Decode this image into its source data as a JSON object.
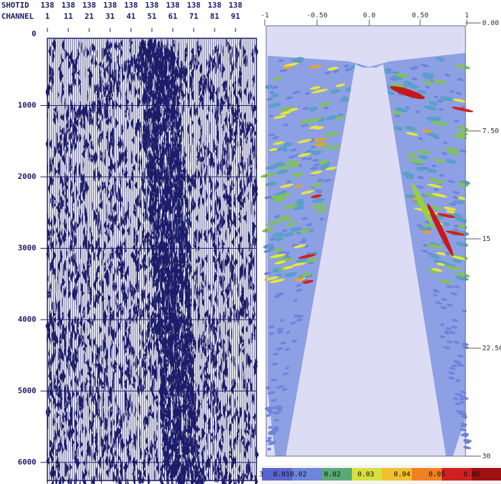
{
  "left_panel": {
    "header_rows": [
      {
        "label": "SHOTID",
        "values": [
          138,
          138,
          138,
          138,
          138,
          138,
          138,
          138,
          138,
          138
        ]
      },
      {
        "label": "CHANNEL",
        "values": [
          1,
          11,
          21,
          31,
          41,
          51,
          61,
          71,
          81,
          91
        ]
      }
    ],
    "y_ticks": [
      0,
      1000,
      2000,
      3000,
      4000,
      5000,
      6000
    ]
  },
  "right_panel": {
    "x_ticks": [
      "-1",
      "-0.50",
      "0.0",
      "0.50",
      "1"
    ],
    "y_ticks": [
      "0.00",
      "7.50",
      "15",
      "22.50",
      "30"
    ],
    "colorbar_labels": [
      "3",
      "0.010.02",
      "0.02",
      "0.03",
      "0.04",
      "0.05",
      "0.06"
    ]
  }
}
